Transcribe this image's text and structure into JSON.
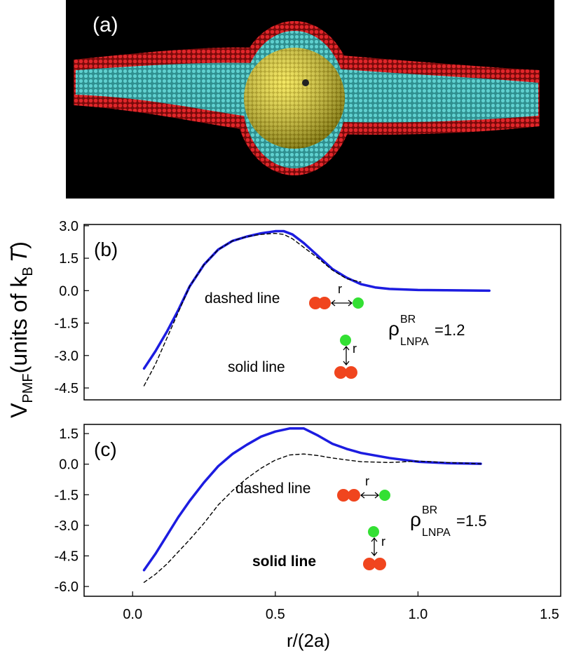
{
  "panel_a": {
    "label": "(a)"
  },
  "y_label": {
    "main": "V",
    "sub": "PMF",
    "middle": "(units of k",
    "sub2": "B",
    "italic": "T",
    "end": ")"
  },
  "chart_data": [
    {
      "type": "line",
      "panel_label": "(b)",
      "xlim": [
        -0.17,
        1.5
      ],
      "ylim": [
        -5.05,
        3.06
      ],
      "yticks": [
        {
          "value": 3,
          "label": "3.0"
        },
        {
          "value": 1.5,
          "label": "1.5"
        },
        {
          "value": 0,
          "label": "0.0"
        },
        {
          "value": -1.5,
          "label": "-1.5"
        },
        {
          "value": -3,
          "label": "-3.0"
        },
        {
          "value": -4.5,
          "label": "-4.5"
        }
      ],
      "dashed_text": "dashed line",
      "solid_text": "solid line",
      "r_labels": [
        "r",
        "r"
      ],
      "rho": {
        "symbol": "ρ",
        "sup": "BR",
        "sub": "LNPA",
        "value_text": "=1.2"
      },
      "series": [
        {
          "color": "#1c1ce0",
          "dashed": false,
          "x": [
            0.04,
            0.08,
            0.12,
            0.16,
            0.2,
            0.25,
            0.3,
            0.35,
            0.4,
            0.45,
            0.5,
            0.53,
            0.56,
            0.6,
            0.65,
            0.7,
            0.75,
            0.8,
            0.85,
            0.9,
            1.0,
            1.1,
            1.25
          ],
          "values": [
            -3.6,
            -2.8,
            -1.9,
            -0.9,
            0.2,
            1.2,
            1.9,
            2.3,
            2.5,
            2.65,
            2.75,
            2.75,
            2.6,
            2.2,
            1.6,
            1.0,
            0.6,
            0.3,
            0.15,
            0.08,
            0.03,
            0.02,
            0.0
          ]
        },
        {
          "color": "#000000",
          "dashed": true,
          "x": [
            0.04,
            0.08,
            0.12,
            0.16,
            0.2,
            0.25,
            0.3,
            0.35,
            0.4,
            0.45,
            0.5,
            0.53,
            0.56,
            0.6,
            0.65,
            0.7,
            0.75,
            0.8
          ],
          "values": [
            -4.4,
            -3.4,
            -2.2,
            -1.0,
            0.2,
            1.2,
            1.9,
            2.3,
            2.5,
            2.6,
            2.65,
            2.6,
            2.4,
            2.0,
            1.5,
            0.95,
            0.55,
            0.4
          ]
        }
      ]
    },
    {
      "type": "line",
      "panel_label": "(c)",
      "xlim": [
        -0.17,
        1.5
      ],
      "ylim": [
        -6.48,
        1.95
      ],
      "xlabel": "r/(2a)",
      "xticks": [
        {
          "value": 0,
          "label": "0.0"
        },
        {
          "value": 0.5,
          "label": "0.5"
        },
        {
          "value": 1,
          "label": "1.0"
        },
        {
          "value": 1.5,
          "label": "1.5"
        }
      ],
      "yticks": [
        {
          "value": 1.5,
          "label": "1.5"
        },
        {
          "value": 0,
          "label": "0.0"
        },
        {
          "value": -1.5,
          "label": "-1.5"
        },
        {
          "value": -3,
          "label": "-3.0"
        },
        {
          "value": -4.5,
          "label": "-4.5"
        },
        {
          "value": -6,
          "label": "-6.0"
        }
      ],
      "dashed_text": "dashed line",
      "solid_text": "solid line",
      "r_labels": [
        "r",
        "r"
      ],
      "rho": {
        "symbol": "ρ",
        "sup": "BR",
        "sub": "LNPA",
        "value_text": "=1.5"
      },
      "series": [
        {
          "color": "#1c1ce0",
          "dashed": false,
          "x": [
            0.04,
            0.08,
            0.12,
            0.16,
            0.2,
            0.25,
            0.3,
            0.35,
            0.4,
            0.45,
            0.5,
            0.55,
            0.6,
            0.65,
            0.7,
            0.75,
            0.8,
            0.9,
            1.0,
            1.1,
            1.22
          ],
          "values": [
            -5.2,
            -4.4,
            -3.5,
            -2.6,
            -1.8,
            -0.9,
            -0.1,
            0.5,
            0.95,
            1.35,
            1.6,
            1.75,
            1.75,
            1.4,
            1.0,
            0.75,
            0.55,
            0.3,
            0.12,
            0.05,
            0.02
          ]
        },
        {
          "color": "#000000",
          "dashed": true,
          "x": [
            0.04,
            0.08,
            0.12,
            0.16,
            0.2,
            0.25,
            0.3,
            0.35,
            0.4,
            0.45,
            0.5,
            0.55,
            0.6,
            0.65,
            0.7,
            0.8,
            0.9,
            1.0,
            1.1,
            1.22
          ],
          "values": [
            -5.8,
            -5.4,
            -4.9,
            -4.3,
            -3.7,
            -2.9,
            -2.0,
            -1.3,
            -0.7,
            -0.2,
            0.2,
            0.45,
            0.5,
            0.42,
            0.3,
            0.12,
            0.08,
            0.15,
            0.08,
            0.02
          ]
        }
      ]
    }
  ]
}
